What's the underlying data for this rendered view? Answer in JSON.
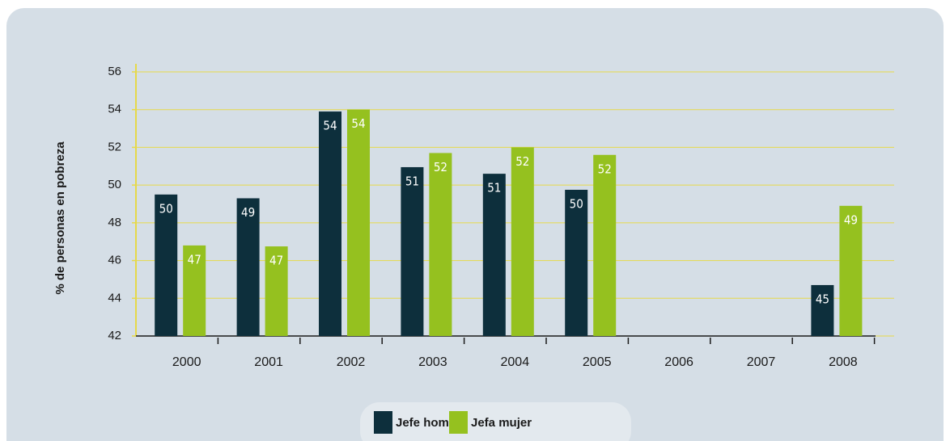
{
  "chart_data": {
    "type": "bar",
    "y_label": "% de personas en pobreza",
    "categories": [
      "2000",
      "2001",
      "2002",
      "2003",
      "2004",
      "2005",
      "2006",
      "2007",
      "2008"
    ],
    "series": [
      {
        "name": "Jefe hombre",
        "color": "#0d2f3c",
        "values": [
          49.5,
          49.3,
          53.9,
          50.95,
          50.6,
          49.75,
          null,
          null,
          44.7
        ],
        "value_labels": [
          "50",
          "49",
          "54",
          "51",
          "51",
          "50",
          null,
          null,
          "45"
        ]
      },
      {
        "name": "Jefa mujer",
        "color": "#95c11f",
        "values": [
          46.8,
          46.75,
          54.0,
          51.7,
          52.0,
          51.6,
          null,
          null,
          48.9
        ],
        "value_labels": [
          "47",
          "47",
          "54",
          "52",
          "52",
          "52",
          null,
          null,
          "49"
        ]
      }
    ],
    "ylim": [
      42,
      56
    ],
    "yticks": [
      42,
      44,
      46,
      48,
      50,
      52,
      54,
      56
    ],
    "grid": true,
    "legend": "bottom"
  }
}
